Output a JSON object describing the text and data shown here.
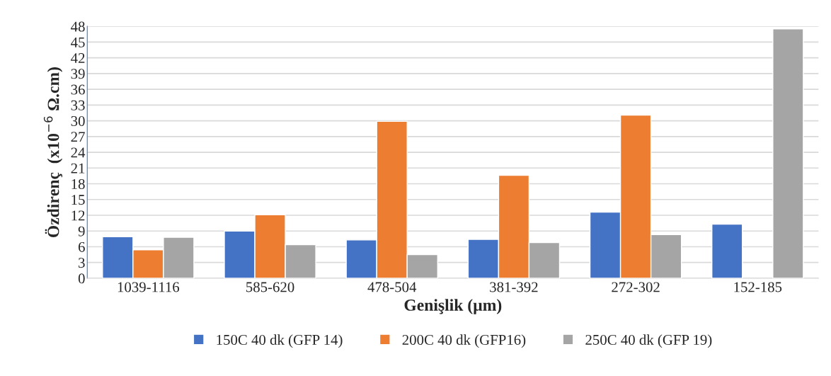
{
  "chart_data": {
    "type": "bar",
    "xlabel": "Genişlik (µm)",
    "ylabel": "Özdirenç  (x10$^{−6}$ Ω.cm)",
    "categories": [
      "1039-1116",
      "585-620",
      "478-504",
      "381-392",
      "272-302",
      "152-185"
    ],
    "series": [
      {
        "name": "150C 40 dk (GFP 14)",
        "color": "#4472c4",
        "values": [
          7.9,
          9.0,
          7.3,
          7.4,
          12.6,
          10.3
        ]
      },
      {
        "name": "200C 40 dk (GFP16)",
        "color": "#ed7d31",
        "values": [
          5.4,
          12.1,
          29.9,
          19.6,
          31.1,
          null
        ]
      },
      {
        "name": "250C 40 dk (GFP 19)",
        "color": "#a5a5a5",
        "values": [
          7.8,
          6.4,
          4.5,
          6.8,
          8.3,
          47.5
        ]
      }
    ],
    "ylim": [
      0,
      48
    ],
    "yticks": [
      0,
      3,
      6,
      9,
      12,
      15,
      18,
      21,
      24,
      27,
      30,
      33,
      36,
      39,
      42,
      45,
      48
    ],
    "grid": "y",
    "legend": "bottom"
  }
}
